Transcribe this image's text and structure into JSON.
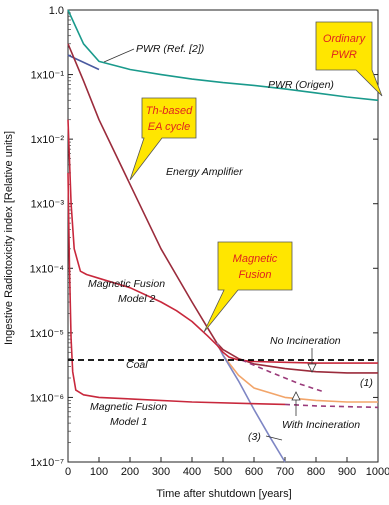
{
  "chart_data": {
    "type": "line",
    "xlabel": "Time after shutdown [years]",
    "ylabel": "Ingestive Radiotoxicity index [Relative units]",
    "xlim": [
      0,
      1000
    ],
    "ylim": [
      1e-07,
      1
    ],
    "yscale": "log",
    "x_ticks": [
      "0",
      "100",
      "200",
      "300",
      "400",
      "500",
      "600",
      "700",
      "800",
      "900",
      "1000"
    ],
    "y_ticks": [
      "1.0",
      "1x10⁻¹",
      "1x10⁻²",
      "1x10⁻³",
      "1x10⁻⁴",
      "1x10⁻⁵",
      "1x10⁻⁶",
      "1x10⁻⁷"
    ],
    "grid": false,
    "series": [
      {
        "name": "PWR (Origen)",
        "color": "#1a9a8c",
        "x": [
          0,
          50,
          100,
          200,
          300,
          400,
          500,
          600,
          700,
          800,
          900,
          1000
        ],
        "y": [
          1.0,
          0.3,
          0.16,
          0.12,
          0.1,
          0.085,
          0.075,
          0.068,
          0.06,
          0.052,
          0.045,
          0.04
        ]
      },
      {
        "name": "PWR (Ref. [2])",
        "color": "#4a5aa0",
        "x": [
          0,
          100
        ],
        "y": [
          0.2,
          0.12
        ]
      },
      {
        "name": "Energy Amplifier",
        "color": "#9b2c3c",
        "x": [
          0,
          50,
          100,
          200,
          300,
          400,
          450,
          480,
          500,
          550,
          600,
          700,
          800,
          900,
          1000
        ],
        "y": [
          0.3,
          0.08,
          0.02,
          0.002,
          0.0002,
          3e-05,
          1.2e-05,
          7e-06,
          5.5e-06,
          4e-06,
          3.3e-06,
          2.8e-06,
          2.5e-06,
          2.4e-06,
          2.4e-06
        ]
      },
      {
        "name": "(1)",
        "color": "#f2a56a",
        "x": [
          480,
          500,
          550,
          600,
          700,
          800,
          900,
          1000
        ],
        "y": [
          7e-06,
          4.5e-06,
          2.2e-06,
          1.4e-06,
          1e-06,
          9e-07,
          8.5e-07,
          8.5e-07
        ]
      },
      {
        "name": "(3)",
        "color": "#7e86c4",
        "x": [
          480,
          500,
          550,
          600,
          650,
          700
        ],
        "y": [
          7e-06,
          4.5e-06,
          1.8e-06,
          6.5e-07,
          2.5e-07,
          1e-07
        ]
      },
      {
        "name": "Magnetic Fusion Model 2",
        "color": "#c8283c",
        "x": [
          0,
          10,
          20,
          40,
          60,
          100,
          200,
          300,
          350,
          400,
          450,
          480,
          500,
          520,
          550,
          600,
          700,
          800,
          1000
        ],
        "y": [
          0.02,
          0.001,
          0.0002,
          9e-05,
          8e-05,
          7e-05,
          5e-05,
          3e-05,
          2.2e-05,
          1.5e-05,
          9e-06,
          6.5e-06,
          5e-06,
          4.2e-06,
          3.8e-06,
          3.6e-06,
          3.5e-06,
          3.4e-06,
          3.4e-06
        ]
      },
      {
        "name": "Magnetic Fusion Model 1",
        "color": "#c8283c",
        "x": [
          0,
          5,
          10,
          15,
          25,
          50,
          100,
          200,
          400,
          600,
          700
        ],
        "y": [
          0.003,
          0.0001,
          8e-06,
          2.5e-06,
          1.3e-06,
          1.1e-06,
          1e-06,
          9.5e-07,
          8.5e-07,
          8e-07,
          7.8e-07
        ]
      },
      {
        "name": "Magnetic Fusion Model 1 (dashed)",
        "color": "#9a3a7a",
        "dashed": true,
        "x": [
          700,
          800,
          1000
        ],
        "y": [
          7.8e-07,
          7.4e-07,
          7e-07
        ]
      },
      {
        "name": "Magnetic Fusion Model 2 (dashed)",
        "color": "#9a3a7a",
        "dashed": true,
        "x": [
          560,
          650,
          750,
          830
        ],
        "y": [
          3.8e-06,
          2.5e-06,
          1.6e-06,
          1.2e-06
        ]
      },
      {
        "name": "Coal",
        "color": "#000000",
        "dashed": true,
        "x": [
          0,
          1000
        ],
        "y": [
          3.8e-06,
          3.8e-06
        ]
      }
    ],
    "annotations": {
      "pwr_ref": "PWR  (Ref. [2])",
      "pwr_origen": "PWR (Origen)",
      "energy_amplifier": "Energy Amplifier",
      "mf_model2_line1": "Magnetic Fusion",
      "mf_model2_line2": "Model 2",
      "mf_model1_line1": "Magnetic Fusion",
      "mf_model1_line2": "Model 1",
      "coal": "Coal",
      "no_incineration": "No Incineration",
      "with_incineration": "With Incineration",
      "label_1": "(1)",
      "label_3": "(3)"
    },
    "callouts": {
      "ordinary_pwr": [
        "Ordinary",
        "PWR"
      ],
      "th_based": [
        "Th-based",
        "EA cycle"
      ],
      "magnetic_fusion": [
        "Magnetic",
        "Fusion"
      ]
    },
    "callout_fill": "#ffe600",
    "callout_text_color": "#e0231e"
  }
}
